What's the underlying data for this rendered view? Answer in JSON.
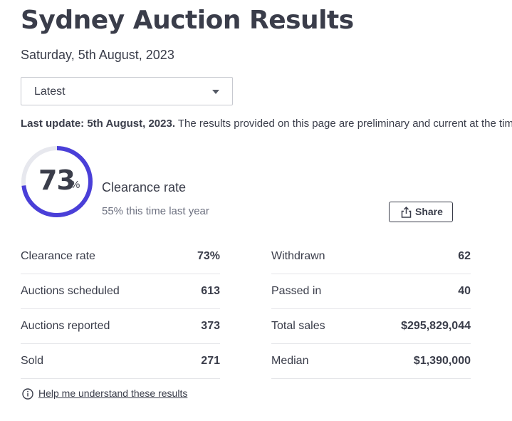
{
  "header": {
    "title": "Sydney Auction Results",
    "date": "Saturday, 5th August, 2023"
  },
  "filter": {
    "selected": "Latest"
  },
  "update": {
    "bold": "Last update: 5th August, 2023.",
    "text": " The results provided on this page are preliminary and current at the time of publishing."
  },
  "clearance": {
    "value": "73",
    "percent_sign": "%",
    "fraction": 0.73,
    "label": "Clearance rate",
    "last_year": "55% this time last year",
    "ring_color": "#4a3fd8",
    "track_color": "#e7e8ee"
  },
  "share": {
    "label": "Share",
    "icon": "share-icon"
  },
  "stats": {
    "left": [
      {
        "label": "Clearance rate",
        "value": "73%"
      },
      {
        "label": "Auctions scheduled",
        "value": "613"
      },
      {
        "label": "Auctions reported",
        "value": "373"
      },
      {
        "label": "Sold",
        "value": "271"
      }
    ],
    "right": [
      {
        "label": "Withdrawn",
        "value": "62"
      },
      {
        "label": "Passed in",
        "value": "40"
      },
      {
        "label": "Total sales",
        "value": "$295,829,044"
      },
      {
        "label": "Median",
        "value": "$1,390,000"
      }
    ]
  },
  "help": {
    "label": "Help me understand these results",
    "icon": "info-icon"
  }
}
